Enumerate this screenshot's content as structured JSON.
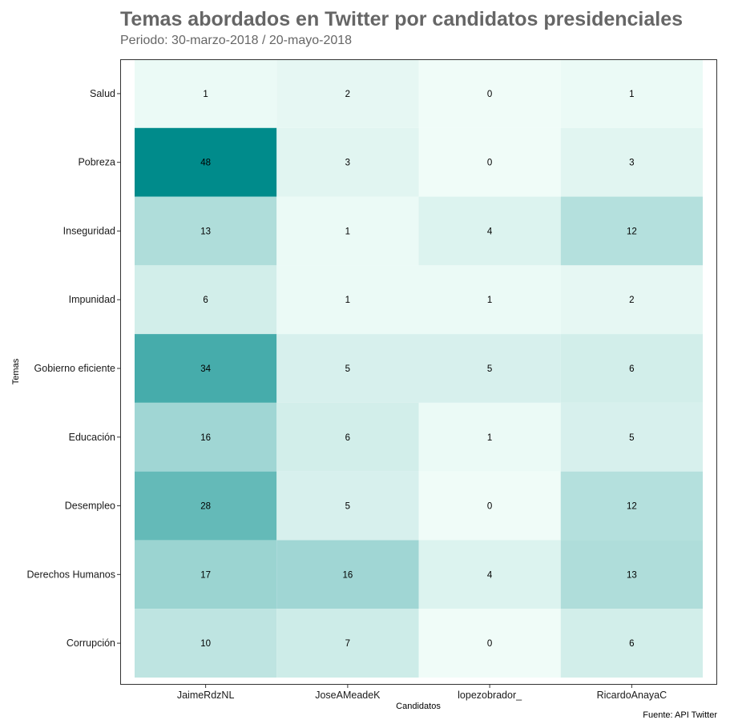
{
  "chart_data": {
    "type": "heatmap",
    "title": "Temas abordados en Twitter por candidatos presidenciales",
    "subtitle": "Periodo: 30-marzo-2018 / 20-mayo-2018",
    "caption": "Fuente: API Twitter",
    "xlabel": "Candidatos",
    "ylabel": "Temas",
    "x_categories": [
      "JaimeRdzNL",
      "JoseAMeadeK",
      "lopezobrador_",
      "RicardoAnayaC"
    ],
    "y_categories": [
      "Salud",
      "Pobreza",
      "Inseguridad",
      "Impunidad",
      "Gobierno eficiente",
      "Educación",
      "Desempleo",
      "Derechos Humanos",
      "Corrupción"
    ],
    "values": [
      [
        1,
        2,
        0,
        1
      ],
      [
        48,
        3,
        0,
        3
      ],
      [
        13,
        1,
        4,
        12
      ],
      [
        6,
        1,
        1,
        2
      ],
      [
        34,
        5,
        5,
        6
      ],
      [
        16,
        6,
        1,
        5
      ],
      [
        28,
        5,
        0,
        12
      ],
      [
        17,
        16,
        4,
        13
      ],
      [
        10,
        7,
        0,
        6
      ]
    ],
    "color_low": "#f0fcf8",
    "color_high": "#008b8b",
    "value_range": [
      0,
      48
    ],
    "grid": false,
    "legend": "none"
  }
}
